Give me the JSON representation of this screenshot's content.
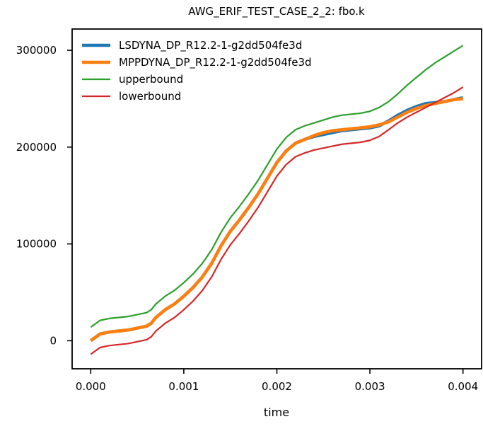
{
  "chart_data": {
    "type": "line",
    "title": "AWG_ERIF_TEST_CASE_2_2: fbo.k",
    "xlabel": "time",
    "ylabel": "",
    "xlim": [
      -0.0002,
      0.0042
    ],
    "ylim": [
      -29000,
      322000
    ],
    "xticks": [
      0.0,
      0.001,
      0.002,
      0.003,
      0.004
    ],
    "xtick_labels": [
      "0.000",
      "0.001",
      "0.002",
      "0.003",
      "0.004"
    ],
    "yticks": [
      0,
      100000,
      200000,
      300000
    ],
    "ytick_labels": [
      "0",
      "100000",
      "200000",
      "300000"
    ],
    "grid": false,
    "legend_position": "top-left",
    "series": [
      {
        "name": "LSDYNA_DP_R12.2-1-g2dd504fe3d",
        "color": "#1f77b4",
        "width": 4.5,
        "x": [
          0.0,
          0.0001,
          0.0002,
          0.0003,
          0.0004,
          0.0005,
          0.0006,
          0.00065,
          0.0007,
          0.00075,
          0.0008,
          0.0009,
          0.001,
          0.0011,
          0.0012,
          0.0013,
          0.0014,
          0.0015,
          0.0016,
          0.0017,
          0.0018,
          0.0019,
          0.002,
          0.0021,
          0.0022,
          0.0023,
          0.0024,
          0.0025,
          0.0026,
          0.0027,
          0.0028,
          0.0029,
          0.003,
          0.0031,
          0.0032,
          0.0033,
          0.0034,
          0.0035,
          0.0036,
          0.0037,
          0.0038,
          0.0039,
          0.004
        ],
        "y": [
          0,
          7000,
          9000,
          10000,
          11000,
          13000,
          15000,
          18000,
          24000,
          28000,
          32000,
          38000,
          46000,
          55000,
          66000,
          80000,
          98000,
          113000,
          125000,
          138000,
          152000,
          168000,
          184000,
          196000,
          204000,
          208000,
          211000,
          213000,
          215000,
          217000,
          218000,
          219000,
          220000,
          222000,
          227000,
          233000,
          238000,
          242000,
          245000,
          246000,
          247000,
          249000,
          251000
        ]
      },
      {
        "name": "MPPDYNA_DP_R12.2-1-g2dd504fe3d",
        "color": "#ff7f0e",
        "width": 4.5,
        "x": [
          0.0,
          0.0001,
          0.0002,
          0.0003,
          0.0004,
          0.0005,
          0.0006,
          0.00065,
          0.0007,
          0.00075,
          0.0008,
          0.0009,
          0.001,
          0.0011,
          0.0012,
          0.0013,
          0.0014,
          0.0015,
          0.0016,
          0.0017,
          0.0018,
          0.0019,
          0.002,
          0.0021,
          0.0022,
          0.0023,
          0.0024,
          0.0025,
          0.0026,
          0.0027,
          0.0028,
          0.0029,
          0.003,
          0.0031,
          0.0032,
          0.0033,
          0.0034,
          0.0035,
          0.0036,
          0.0037,
          0.0038,
          0.0039,
          0.004
        ],
        "y": [
          0,
          7000,
          9000,
          10000,
          11000,
          13000,
          15000,
          18000,
          24000,
          28000,
          32000,
          38000,
          46000,
          55000,
          66000,
          80000,
          98000,
          113000,
          125000,
          138000,
          152000,
          168000,
          184000,
          196000,
          204000,
          208000,
          212000,
          215000,
          217000,
          218000,
          219000,
          220000,
          221000,
          223000,
          226000,
          231000,
          236000,
          240000,
          243000,
          245000,
          247000,
          249000,
          250000
        ]
      },
      {
        "name": "upperbound",
        "color": "#2ca02c",
        "width": 2.2,
        "x": [
          0.0,
          0.0001,
          0.0002,
          0.0003,
          0.0004,
          0.0005,
          0.0006,
          0.00065,
          0.0007,
          0.00075,
          0.0008,
          0.0009,
          0.001,
          0.0011,
          0.0012,
          0.0013,
          0.0014,
          0.0015,
          0.0016,
          0.0017,
          0.0018,
          0.0019,
          0.002,
          0.0021,
          0.0022,
          0.0023,
          0.0024,
          0.0025,
          0.0026,
          0.0027,
          0.0028,
          0.0029,
          0.003,
          0.0031,
          0.0032,
          0.0033,
          0.0034,
          0.0035,
          0.0036,
          0.0037,
          0.0038,
          0.0039,
          0.004
        ],
        "y": [
          14000,
          21000,
          23000,
          24000,
          25000,
          27000,
          29000,
          32000,
          38000,
          42000,
          46000,
          52000,
          60000,
          69000,
          80000,
          94000,
          112000,
          127000,
          139000,
          152000,
          166000,
          182000,
          198000,
          210000,
          218000,
          222000,
          225000,
          228000,
          231000,
          233000,
          234000,
          235000,
          237000,
          241000,
          247000,
          255000,
          264000,
          272000,
          280000,
          287000,
          293000,
          299000,
          305000
        ]
      },
      {
        "name": "lowerbound",
        "color": "#d62728",
        "width": 2.2,
        "x": [
          0.0,
          0.0001,
          0.0002,
          0.0003,
          0.0004,
          0.0005,
          0.0006,
          0.00065,
          0.0007,
          0.00075,
          0.0008,
          0.0009,
          0.001,
          0.0011,
          0.0012,
          0.0013,
          0.0014,
          0.0015,
          0.0016,
          0.0017,
          0.0018,
          0.0019,
          0.002,
          0.0021,
          0.0022,
          0.0023,
          0.0024,
          0.0025,
          0.0026,
          0.0027,
          0.0028,
          0.0029,
          0.003,
          0.0031,
          0.0032,
          0.0033,
          0.0034,
          0.0035,
          0.0036,
          0.0037,
          0.0038,
          0.0039,
          0.004
        ],
        "y": [
          -14000,
          -7000,
          -5000,
          -4000,
          -3000,
          -1000,
          1000,
          4000,
          10000,
          14000,
          18000,
          24000,
          32000,
          41000,
          52000,
          66000,
          84000,
          99000,
          111000,
          124000,
          138000,
          154000,
          170000,
          182000,
          190000,
          194000,
          197000,
          199000,
          201000,
          203000,
          204000,
          205000,
          207000,
          211000,
          218000,
          225000,
          231000,
          236000,
          241000,
          246000,
          251000,
          256000,
          262000
        ]
      }
    ]
  }
}
